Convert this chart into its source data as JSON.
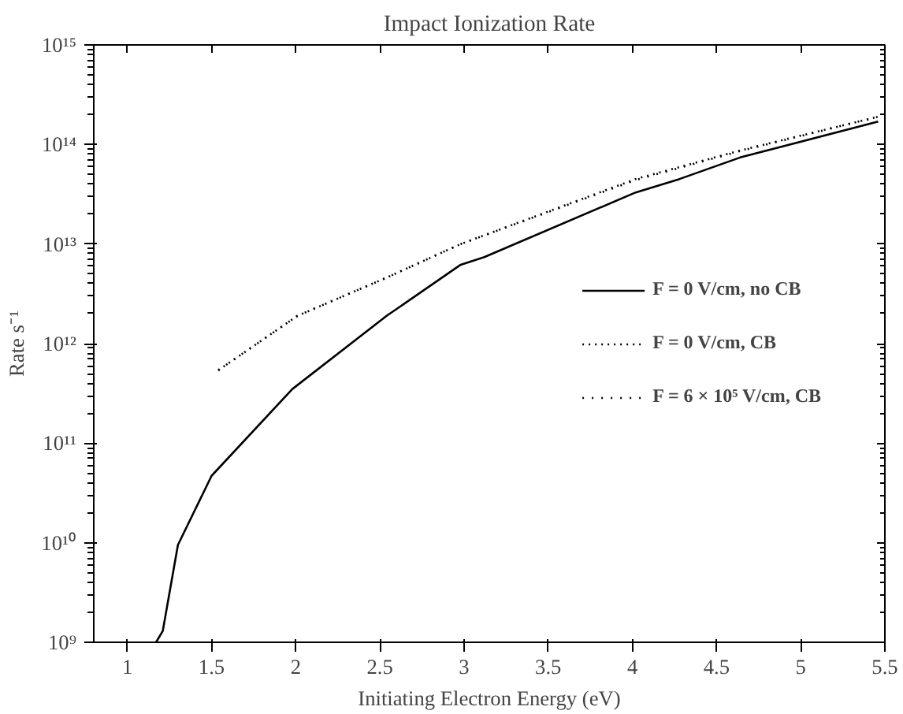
{
  "chart_data": {
    "type": "line",
    "title": "Impact Ionization Rate",
    "xlabel": "Initiating Electron Energy (eV)",
    "ylabel": "Rate s⁻¹",
    "log": "y",
    "grid": false,
    "legend": "right",
    "marker": "none",
    "xlim": [
      0.8,
      5.5
    ],
    "ylim": [
      1000000000.0,
      1000000000000000.0
    ],
    "xticks": [
      1,
      1.5,
      2,
      2.5,
      3,
      3.5,
      4,
      4.5,
      5,
      5.5
    ],
    "yticks": [
      {
        "value": 1000000000.0,
        "label": "10⁹"
      },
      {
        "value": 10000000000.0,
        "label": "10¹⁰"
      },
      {
        "value": 100000000000.0,
        "label": "10¹¹"
      },
      {
        "value": 1000000000000.0,
        "label": "10¹²"
      },
      {
        "value": 10000000000000.0,
        "label": "10¹³"
      },
      {
        "value": 100000000000000.0,
        "label": "10¹⁴"
      },
      {
        "value": 1000000000000000.0,
        "label": "10¹⁵"
      }
    ],
    "series": [
      {
        "name": "F = 0 V/cm, no CB",
        "color": "#000000",
        "line_style": "solid",
        "x": [
          1.17,
          1.21,
          1.3,
          1.5,
          1.98,
          2.54,
          2.98,
          3.12,
          4.02,
          4.28,
          4.64,
          5.46
        ],
        "values": [
          1000000000.0,
          1300000000.0,
          9500000000.0,
          47000000000.0,
          350000000000.0,
          1900000000000.0,
          6200000000000.0,
          7400000000000.0,
          33000000000000.0,
          45000000000000.0,
          74000000000000.0,
          170000000000000.0
        ]
      },
      {
        "name": "F = 0 V/cm, CB",
        "color": "#000000",
        "line_style": "dotted",
        "x": [
          1.54,
          2.01,
          2.54,
          2.98,
          4.02,
          4.64,
          5.46
        ],
        "values": [
          540000000000.0,
          1900000000000.0,
          4600000000000.0,
          10000000000000.0,
          45000000000000.0,
          87000000000000.0,
          190000000000000.0
        ]
      },
      {
        "name": "F = 6 × 10⁵ V/cm, CB",
        "color": "#000000",
        "line_style": "dotted",
        "x": [
          1.54,
          2.01,
          2.54,
          2.98,
          4.02,
          4.64,
          5.46
        ],
        "values": [
          540000000000.0,
          1900000000000.0,
          4600000000000.0,
          10000000000000.0,
          44000000000000.0,
          86000000000000.0,
          190000000000000.0
        ]
      }
    ]
  }
}
